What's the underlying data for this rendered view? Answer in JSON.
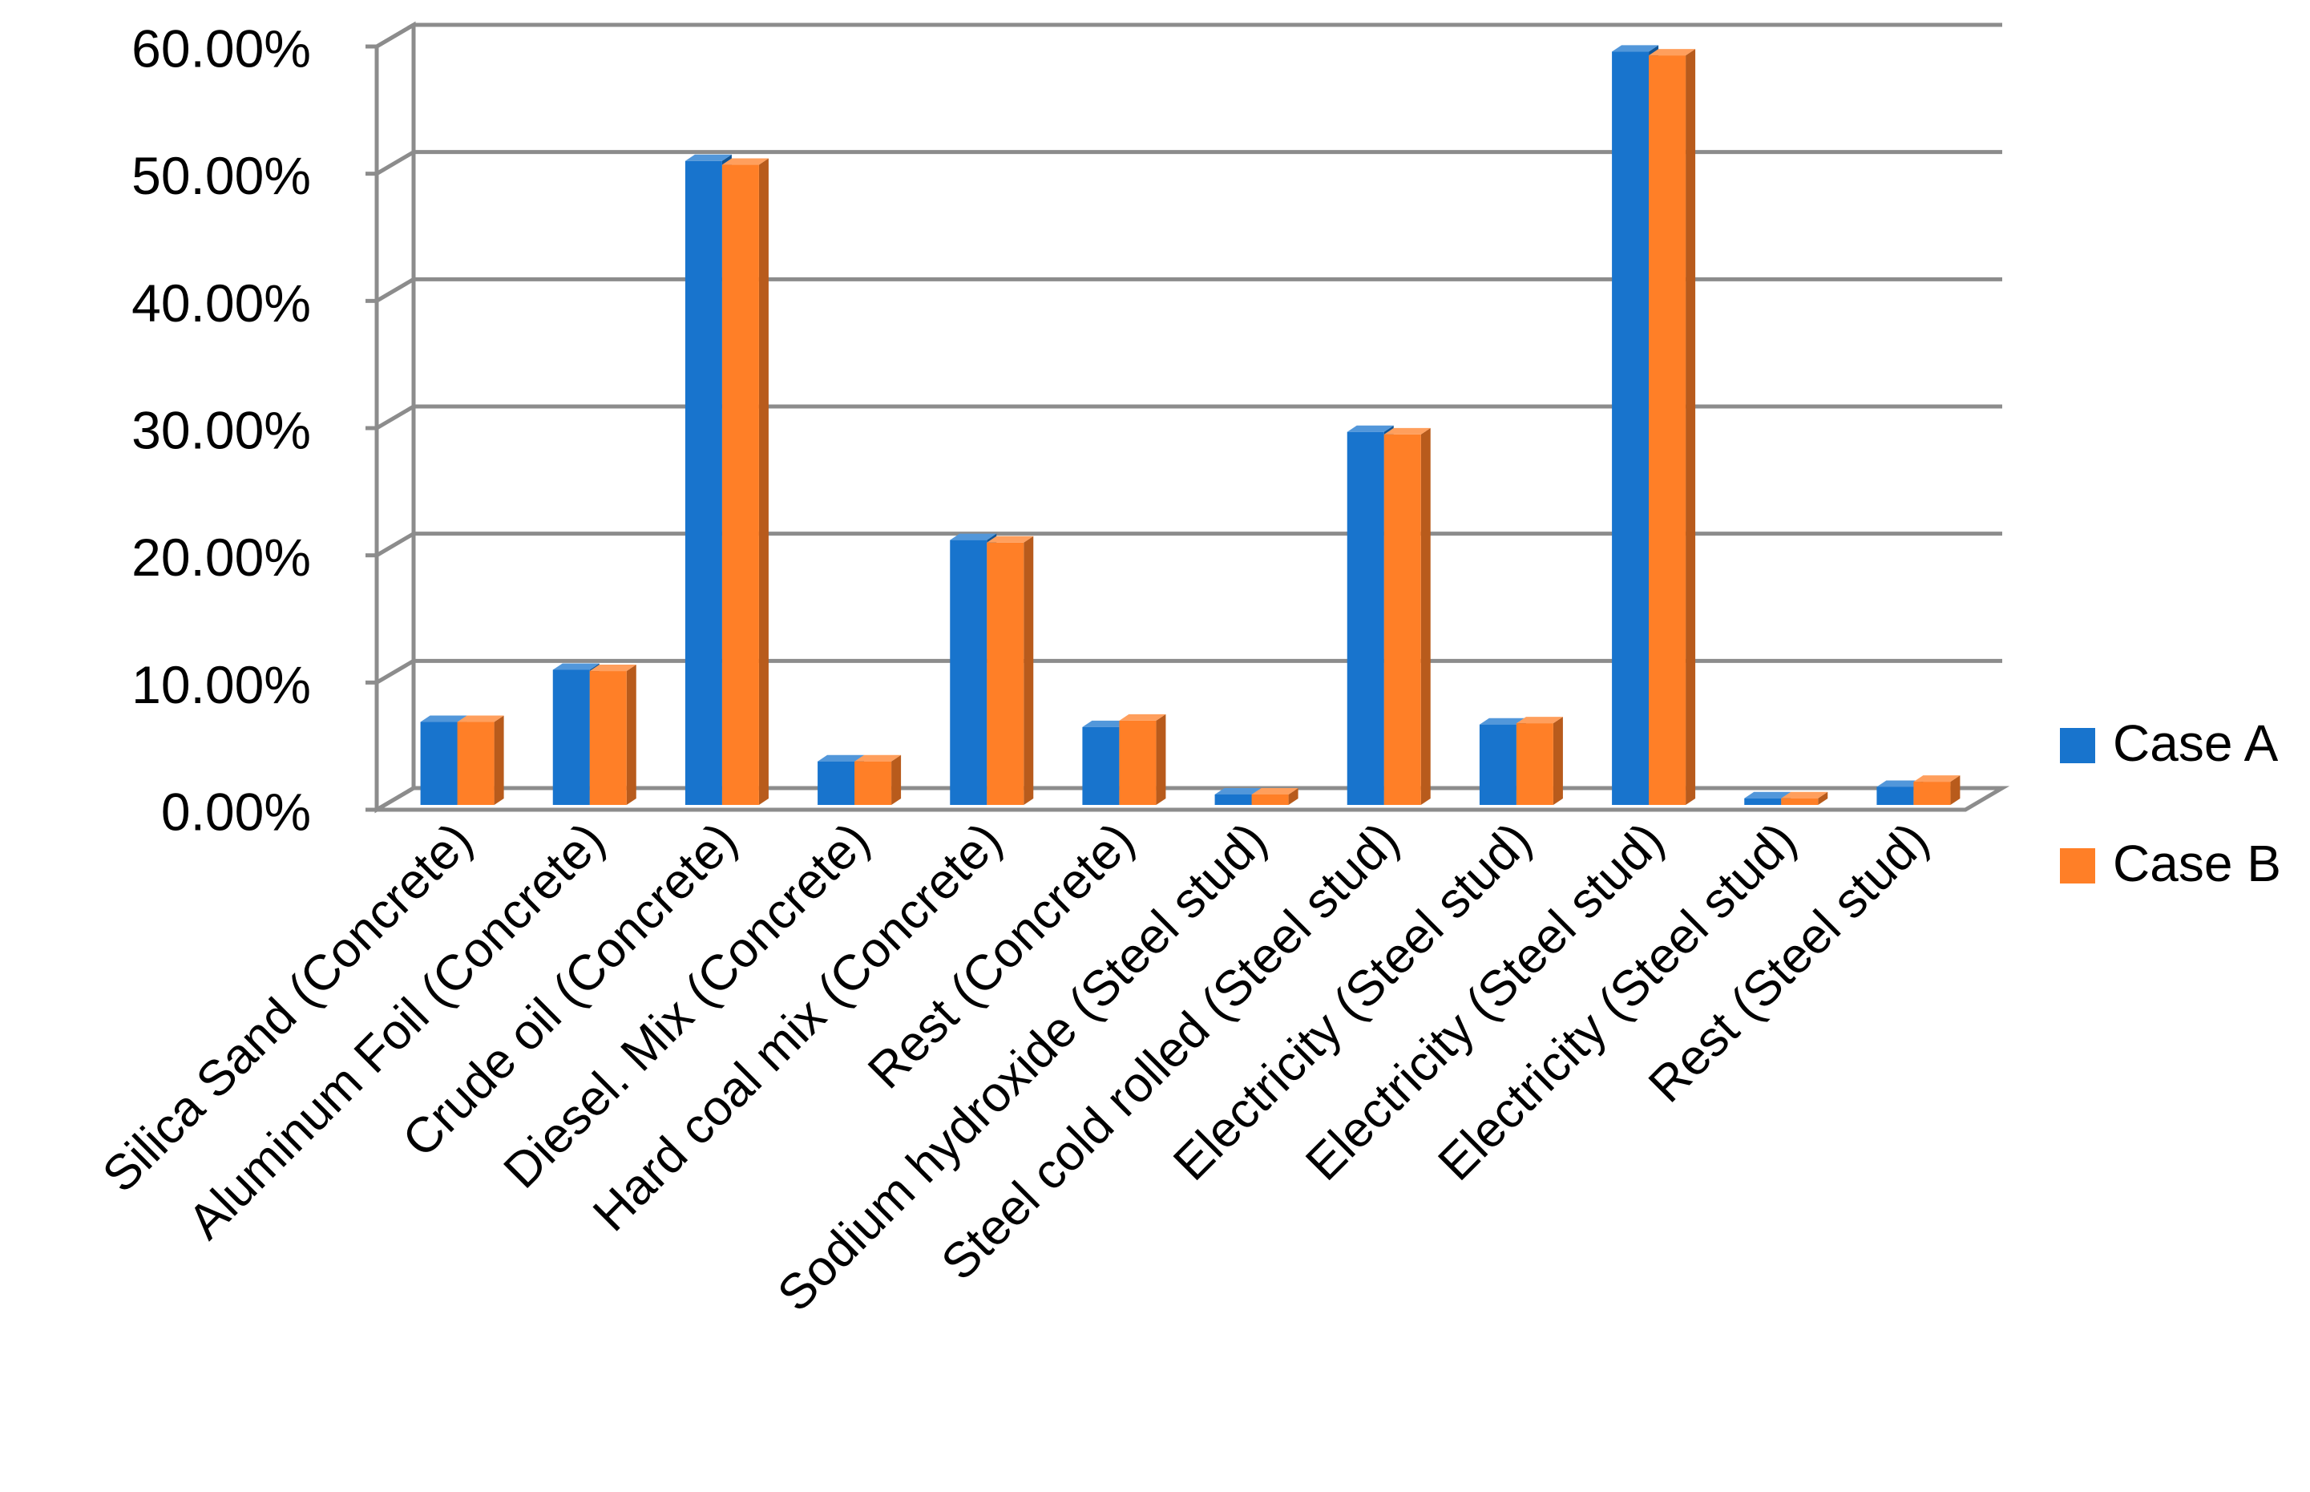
{
  "chart_data": {
    "type": "bar",
    "style": "3d-clustered-column",
    "categories": [
      "Silica Sand (Concrete)",
      "Aluminum Foil (Concrete)",
      "Crude oil (Concrete)",
      "Diesel. Mix (Concrete)",
      "Hard coal mix (Concrete)",
      "Rest (Concrete)",
      "Sodium hydroxide (Steel stud)",
      "Steel cold rolled (Steel stud)",
      "Electricity (Steel stud)",
      "Electricity (Steel stud)",
      "Electricity (Steel stud)",
      "Rest (Steel stud)"
    ],
    "series": [
      {
        "name": "Case A",
        "color": "#1874CD",
        "values": [
          6.9,
          11.0,
          51.0,
          3.8,
          21.2,
          6.5,
          1.2,
          29.7,
          6.7,
          59.6,
          0.9,
          1.8
        ]
      },
      {
        "name": "Case B",
        "color": "#FF7F27",
        "values": [
          6.9,
          10.9,
          50.7,
          3.8,
          21.0,
          7.0,
          1.2,
          29.5,
          6.8,
          59.3,
          0.9,
          2.2
        ]
      }
    ],
    "ylim": [
      0,
      60
    ],
    "yticks": [
      0,
      10,
      20,
      30,
      40,
      50,
      60
    ],
    "ytick_labels": [
      "0.00%",
      "10.00%",
      "20.00%",
      "30.00%",
      "40.00%",
      "50.00%",
      "60.00%"
    ],
    "title": "",
    "xlabel": "",
    "ylabel": "",
    "grid": true,
    "legend_position": "right"
  }
}
